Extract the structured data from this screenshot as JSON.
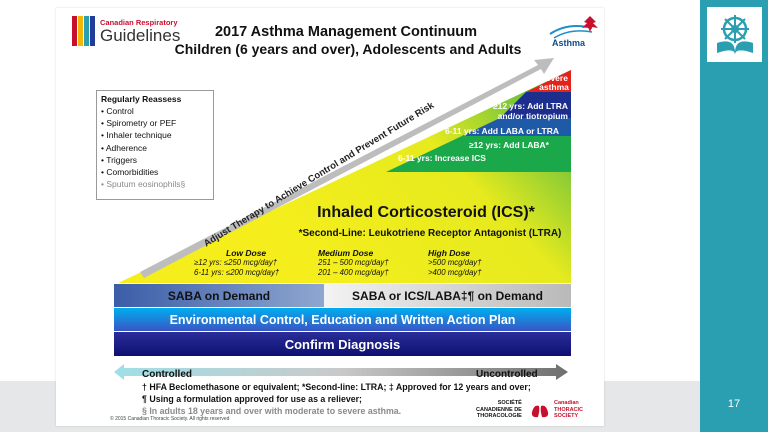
{
  "header": {
    "logo_line1": "Canadian Respiratory",
    "logo_line2": "Guidelines",
    "title_line1": "2017 Asthma Management Continuum",
    "title_line2": "Children (6 years and over), Adolescents and Adults",
    "asthma_logo": "Asthma"
  },
  "reassess": {
    "heading": "Regularly Reassess",
    "items": [
      "Control",
      "Spirometry or PEF",
      "Inhaler technique",
      "Adherence",
      "Triggers",
      "Comorbidities"
    ],
    "last_item": "Sputum eosinophils§"
  },
  "diagonal_arrow": "Adjust Therapy to Achieve Control and Prevent Future Risk",
  "steps": {
    "severe_line1": "Severe",
    "severe_line2": "asthma",
    "ltra_line1": "≥12 yrs: Add LTRA",
    "ltra_line2": "and/or tiotropium",
    "laba_ltra": "6-11 yrs: Add LABA or LTRA",
    "add_laba": "≥12 yrs: Add LABA*",
    "increase_ics": "6-11 yrs: Increase ICS"
  },
  "ics": {
    "title": "Inhaled Corticosteroid (ICS)*",
    "subtitle": "*Second-Line: Leukotriene Receptor Antagonist (LTRA)"
  },
  "doses": {
    "low": {
      "heading": "Low Dose",
      "line1": "≥12 yrs: ≤250 mcg/day†",
      "line2": "6-11 yrs: ≤200 mcg/day†"
    },
    "medium": {
      "heading": "Medium Dose",
      "line1": "251 – 500 mcg/day†",
      "line2": "201 – 400 mcg/day†"
    },
    "high": {
      "heading": "High Dose",
      "line1": ">500 mcg/day†",
      "line2": ">400 mcg/day†"
    }
  },
  "bars": {
    "saba": "SABA on Demand",
    "saba_ics": "SABA or ICS/LABA‡¶ on Demand",
    "environment": "Environmental Control, Education and Written Action Plan",
    "diagnosis": "Confirm Diagnosis"
  },
  "control_arrow": {
    "left": "Controlled",
    "right": "Uncontrolled"
  },
  "footnotes": [
    "† HFA Beclomethasone or equivalent; *Second-line: LTRA; ‡ Approved for 12 years and over;",
    "¶ Using a formulation approved for use as a reliever;"
  ],
  "footnote_grey": "§ In adults 18 years and over with moderate to severe asthma.",
  "copyright": "© 2015 Canadian Thoracic Society.  All rights reserved",
  "cts": {
    "fr1": "SOCIÉTÉ",
    "fr2": "CANADIENNE DE",
    "fr3": "THORACOLOGIE",
    "en1": "Canadian",
    "en2": "THORACIC",
    "en3": "SOCIETY"
  },
  "slide_number": "17",
  "colors": {
    "teal": "#2a9fb1",
    "yellow": "#f5ee1c",
    "green": "#3cb54a",
    "blue": "#1f3d99",
    "red": "#e2231a",
    "navy": "#141a7a"
  }
}
